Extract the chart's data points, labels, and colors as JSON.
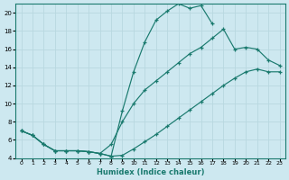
{
  "xlabel": "Humidex (Indice chaleur)",
  "bg_color": "#cde8f0",
  "line_color": "#1a7a6e",
  "grid_color": "#b8d8e0",
  "xlim": [
    -0.5,
    23.5
  ],
  "ylim": [
    4,
    21
  ],
  "yticks": [
    4,
    6,
    8,
    10,
    12,
    14,
    16,
    18,
    20
  ],
  "xticks": [
    0,
    1,
    2,
    3,
    4,
    5,
    6,
    7,
    8,
    9,
    10,
    11,
    12,
    13,
    14,
    15,
    16,
    17,
    18,
    19,
    20,
    21,
    22,
    23
  ],
  "line1_x": [
    0,
    1,
    2,
    3,
    4,
    5,
    6,
    7,
    8,
    9,
    10,
    11,
    12,
    13,
    14,
    15,
    16,
    17
  ],
  "line1_y": [
    7,
    6.5,
    5.5,
    4.8,
    4.8,
    4.8,
    4.7,
    4.5,
    4.2,
    9.2,
    13.5,
    16.8,
    19.2,
    20.2,
    21.0,
    20.5,
    20.8,
    18.8
  ],
  "line2_x": [
    0,
    1,
    2,
    3,
    4,
    5,
    6,
    7,
    8,
    9,
    10,
    11,
    12,
    13,
    14,
    15,
    16,
    17,
    18,
    19,
    20,
    21,
    22,
    23
  ],
  "line2_y": [
    7,
    6.5,
    5.5,
    4.8,
    4.8,
    4.8,
    4.7,
    4.5,
    5.5,
    8.0,
    10.0,
    11.5,
    12.5,
    13.5,
    14.5,
    15.5,
    16.2,
    17.2,
    18.2,
    16.0,
    16.2,
    16.0,
    14.8,
    14.2
  ],
  "line3_x": [
    0,
    1,
    2,
    3,
    4,
    5,
    6,
    7,
    8,
    9,
    10,
    11,
    12,
    13,
    14,
    15,
    16,
    17,
    18,
    19,
    20,
    21,
    22,
    23
  ],
  "line3_y": [
    7,
    6.5,
    5.5,
    4.8,
    4.8,
    4.8,
    4.7,
    4.5,
    4.2,
    4.3,
    5.0,
    5.8,
    6.6,
    7.5,
    8.4,
    9.3,
    10.2,
    11.1,
    12.0,
    12.8,
    13.5,
    13.8,
    13.5,
    13.5
  ]
}
